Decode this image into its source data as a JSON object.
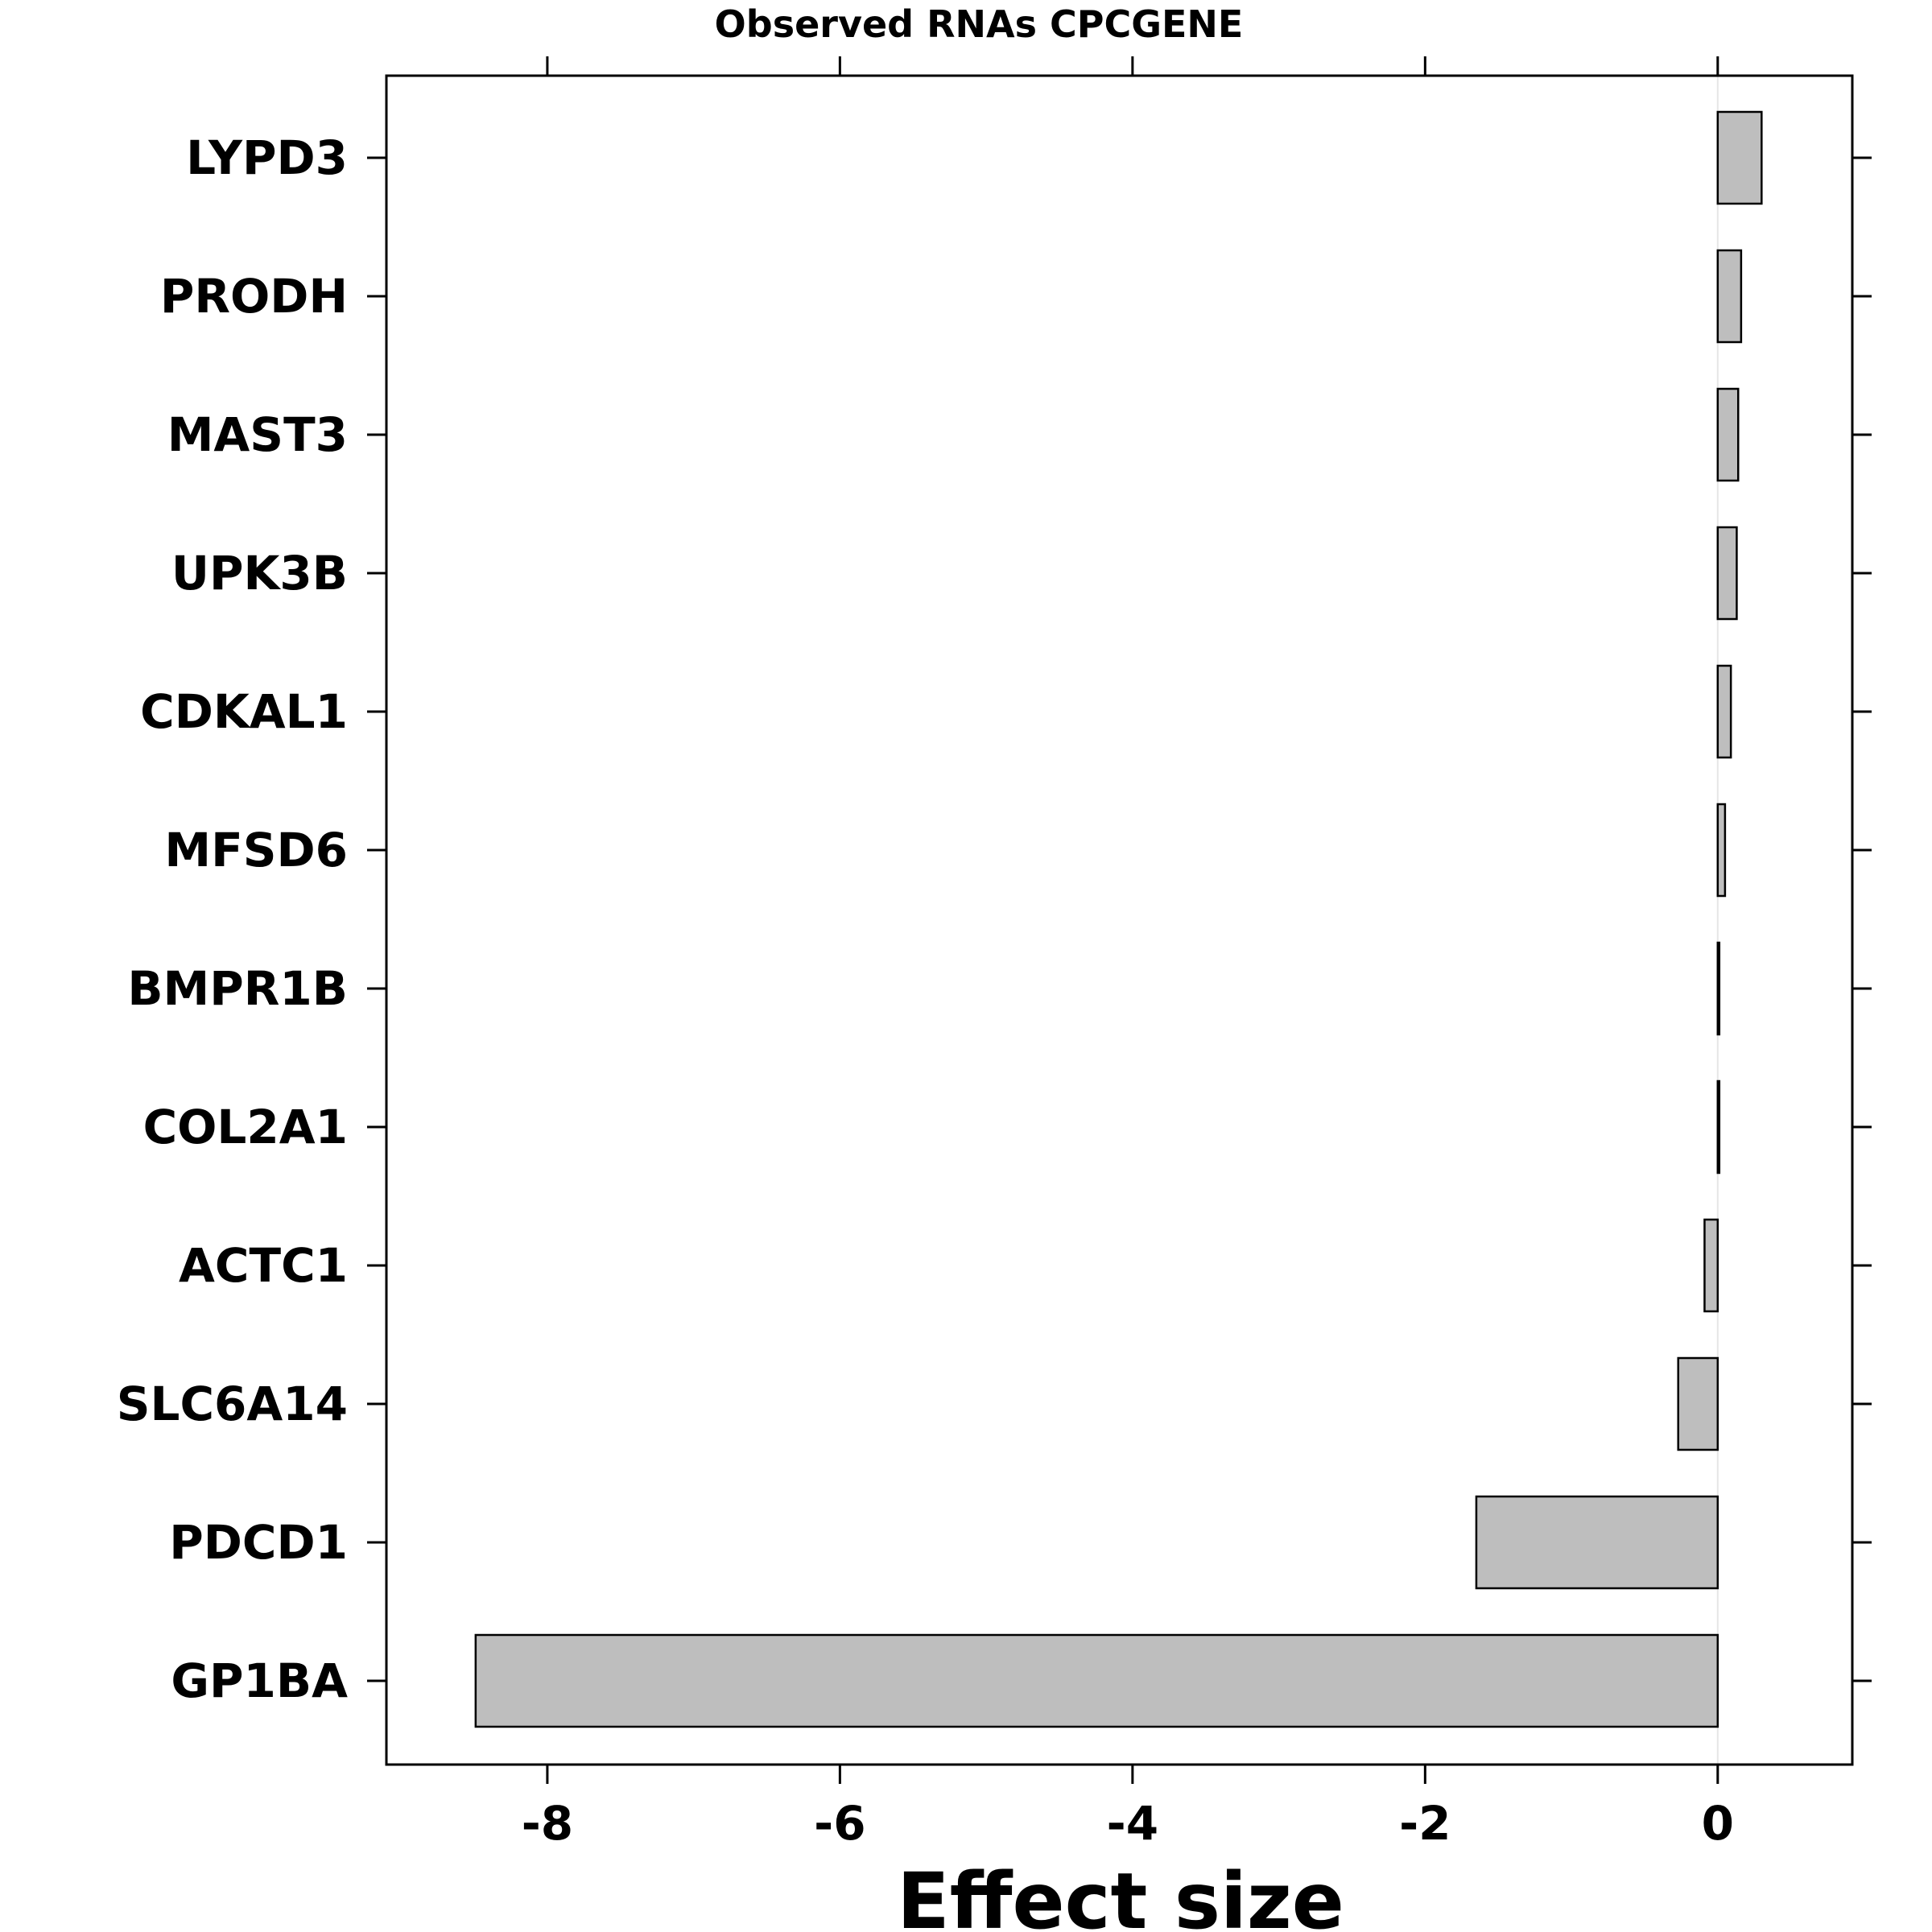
{
  "chart_data": {
    "type": "bar",
    "orientation": "horizontal",
    "title": "Observed RNAs CPCGENE",
    "xlabel": "Effect size",
    "ylabel": "",
    "categories": [
      "LYPD3",
      "PRODH",
      "MAST3",
      "UPK3B",
      "CDKAL1",
      "MFSD6",
      "BMPR1B",
      "COL2A1",
      "ACTC1",
      "SLC6A14",
      "PDCD1",
      "GP1BA"
    ],
    "values": [
      0.3,
      0.16,
      0.14,
      0.13,
      0.09,
      0.05,
      0.01,
      0.005,
      -0.09,
      -0.27,
      -1.65,
      -8.49
    ],
    "xlim": [
      -9.1,
      0.92
    ],
    "xticks": [
      -8,
      -6,
      -4,
      -2,
      0
    ],
    "xtick_labels": [
      "-8",
      "-6",
      "-4",
      "-2",
      "0"
    ],
    "grid": false,
    "reference_line": 0,
    "colors": {
      "bar_fill": "#bebebe",
      "bar_stroke": "#000000",
      "zero_line": "#e6e6e6"
    }
  }
}
